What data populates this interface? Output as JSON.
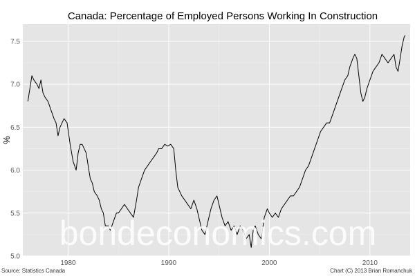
{
  "chart_data": {
    "type": "line",
    "title": "Canada: Percentage of Employed Persons Working In Construction",
    "xlabel": "",
    "ylabel": "%",
    "xlim": [
      1975.5,
      2014.0
    ],
    "ylim": [
      5.0,
      7.7
    ],
    "x_ticks": [
      "1980",
      "1990",
      "2000",
      "2010"
    ],
    "x_tick_values": [
      1980,
      1990,
      2000,
      2010
    ],
    "y_ticks": [
      "5.0",
      "5.5",
      "6.0",
      "6.5",
      "7.0",
      "7.5"
    ],
    "y_tick_values": [
      5.0,
      5.5,
      6.0,
      6.5,
      7.0,
      7.5
    ],
    "grid": true,
    "panel_color": "#e5e5e5",
    "grid_color": "#ffffff",
    "line_color": "#000000",
    "series": [
      {
        "x": [
          1976.0,
          1976.2,
          1976.4,
          1976.6,
          1976.9,
          1977.1,
          1977.3,
          1977.5,
          1977.7,
          1978.0,
          1978.3,
          1978.6,
          1978.8,
          1979.0,
          1979.2,
          1979.4,
          1979.6,
          1979.9,
          1980.2,
          1980.5,
          1980.8,
          1981.0,
          1981.2,
          1981.4,
          1981.6,
          1981.8,
          1982.0,
          1982.2,
          1982.4,
          1982.6,
          1982.9,
          1983.1,
          1983.3,
          1983.5,
          1983.7,
          1984.0,
          1984.2,
          1984.5,
          1984.8,
          1985.0,
          1985.3,
          1985.6,
          1985.9,
          1986.2,
          1986.5,
          1986.8,
          1987.0,
          1987.3,
          1987.6,
          1987.9,
          1988.2,
          1988.5,
          1988.8,
          1989.0,
          1989.3,
          1989.6,
          1989.9,
          1990.2,
          1990.5,
          1990.7,
          1990.9,
          1991.1,
          1991.3,
          1991.6,
          1991.9,
          1992.2,
          1992.5,
          1992.8,
          1993.0,
          1993.3,
          1993.6,
          1993.9,
          1994.2,
          1994.5,
          1994.8,
          1995.0,
          1995.3,
          1995.6,
          1995.9,
          1996.2,
          1996.5,
          1996.8,
          1997.1,
          1997.4,
          1997.7,
          1998.0,
          1998.2,
          1998.4,
          1998.6,
          1998.9,
          1999.2,
          1999.5,
          1999.8,
          2000.0,
          2000.3,
          2000.6,
          2000.9,
          2001.2,
          2001.5,
          2001.8,
          2002.1,
          2002.4,
          2002.7,
          2003.0,
          2003.3,
          2003.6,
          2003.9,
          2004.2,
          2004.5,
          2004.8,
          2005.1,
          2005.4,
          2005.7,
          2006.0,
          2006.3,
          2006.6,
          2006.9,
          2007.2,
          2007.5,
          2007.8,
          2008.0,
          2008.3,
          2008.5,
          2008.7,
          2008.9,
          2009.1,
          2009.3,
          2009.5,
          2009.7,
          2010.0,
          2010.3,
          2010.6,
          2010.9,
          2011.2,
          2011.5,
          2011.8,
          2012.1,
          2012.4,
          2012.6,
          2012.8,
          2013.0,
          2013.2,
          2013.4,
          2013.5
        ],
        "values": [
          6.8,
          6.95,
          7.1,
          7.05,
          7.0,
          6.95,
          7.05,
          6.9,
          6.85,
          6.8,
          6.7,
          6.6,
          6.55,
          6.4,
          6.5,
          6.55,
          6.6,
          6.55,
          6.3,
          6.1,
          6.0,
          6.2,
          6.3,
          6.3,
          6.25,
          6.2,
          6.05,
          5.9,
          5.85,
          5.75,
          5.7,
          5.65,
          5.55,
          5.5,
          5.35,
          5.35,
          5.3,
          5.4,
          5.5,
          5.5,
          5.55,
          5.6,
          5.55,
          5.5,
          5.45,
          5.65,
          5.8,
          5.9,
          6.0,
          6.05,
          6.1,
          6.15,
          6.2,
          6.25,
          6.25,
          6.3,
          6.28,
          6.3,
          6.25,
          6.0,
          5.8,
          5.75,
          5.7,
          5.65,
          5.6,
          5.55,
          5.65,
          5.55,
          5.45,
          5.3,
          5.25,
          5.4,
          5.55,
          5.65,
          5.7,
          5.6,
          5.45,
          5.35,
          5.4,
          5.3,
          5.35,
          5.25,
          5.35,
          5.3,
          5.2,
          5.25,
          5.1,
          5.3,
          5.35,
          5.25,
          5.2,
          5.45,
          5.55,
          5.5,
          5.45,
          5.5,
          5.45,
          5.55,
          5.6,
          5.65,
          5.7,
          5.7,
          5.75,
          5.8,
          5.9,
          6.0,
          6.05,
          6.15,
          6.25,
          6.35,
          6.45,
          6.5,
          6.55,
          6.55,
          6.65,
          6.75,
          6.85,
          6.95,
          7.05,
          7.1,
          7.2,
          7.3,
          7.35,
          7.3,
          7.1,
          6.9,
          6.8,
          6.85,
          6.95,
          7.05,
          7.15,
          7.2,
          7.25,
          7.35,
          7.3,
          7.25,
          7.3,
          7.35,
          7.2,
          7.15,
          7.3,
          7.45,
          7.55,
          7.57
        ]
      }
    ],
    "source_note": "Source: Statistics Canada",
    "credit_note": "Chart (C) 2013 Brian Romanchuk",
    "watermark": "bondeconomics.com"
  }
}
